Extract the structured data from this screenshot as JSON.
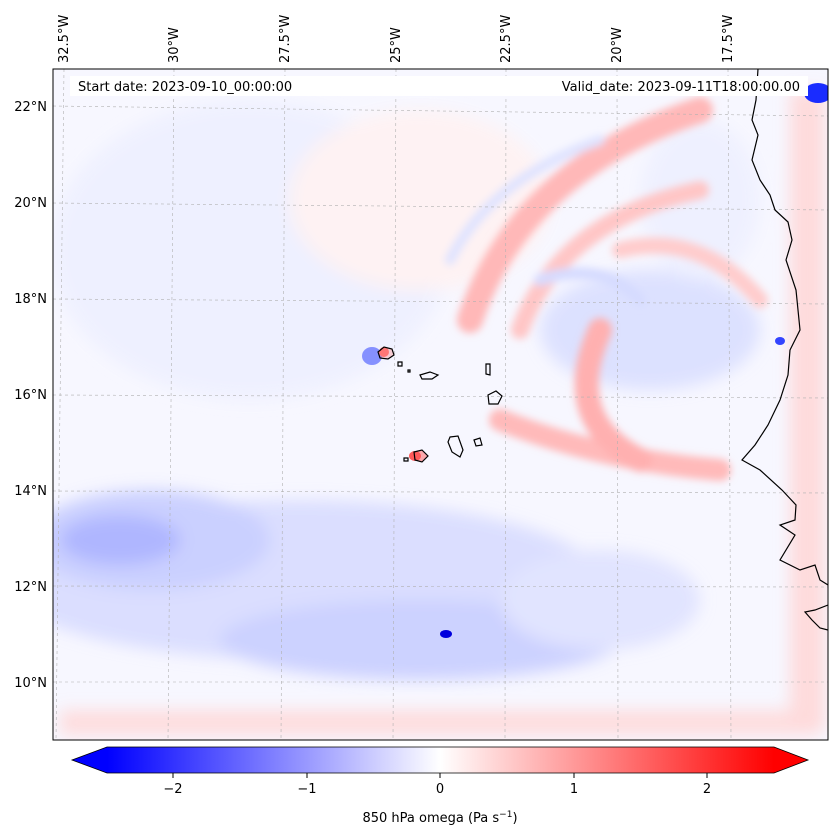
{
  "header": {
    "start_label": "Start date: 2023-09-10_00:00:00",
    "valid_label": "Valid_date: 2023-09-11T18:00:00.00"
  },
  "map": {
    "lon_labels": [
      "32.5°W",
      "30°W",
      "27.5°W",
      "25°W",
      "22.5°W",
      "20°W",
      "17.5°W"
    ],
    "lat_labels": [
      "22°N",
      "20°N",
      "18°N",
      "16°N",
      "14°N",
      "12°N",
      "10°N"
    ],
    "colors": {
      "negative": "#0000ff",
      "positive": "#ff0000",
      "neutral": "#ffffff",
      "coastline": "#000000",
      "gridline": "#b0b0b0"
    }
  },
  "colorbar": {
    "ticks": [
      "−2",
      "−1",
      "0",
      "1",
      "2"
    ],
    "label": "850 hPa omega (Pa s",
    "label_sup": "−1",
    "label_close": ")",
    "range": [
      -2.6,
      2.6
    ]
  }
}
